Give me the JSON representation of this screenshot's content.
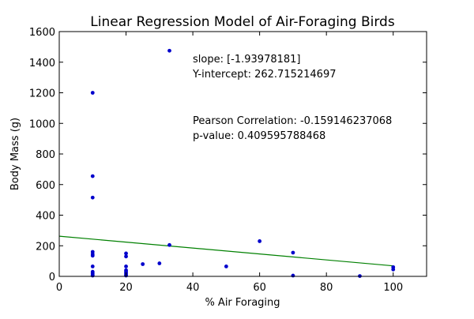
{
  "chart_data": {
    "type": "scatter",
    "title": "Linear Regression Model of Air-Foraging Birds",
    "xlabel": "% Air Foraging",
    "ylabel": "Body Mass (g)",
    "xlim": [
      0,
      110
    ],
    "ylim": [
      0,
      1600
    ],
    "xticks": [
      0,
      20,
      40,
      60,
      80,
      100
    ],
    "yticks": [
      0,
      200,
      400,
      600,
      800,
      1000,
      1200,
      1400,
      1600
    ],
    "grid": false,
    "point_color": "#0000cc",
    "line_color": "#008000",
    "points": [
      {
        "x": 10,
        "y": 1200
      },
      {
        "x": 10,
        "y": 655
      },
      {
        "x": 10,
        "y": 515
      },
      {
        "x": 10,
        "y": 160
      },
      {
        "x": 10,
        "y": 145
      },
      {
        "x": 10,
        "y": 135
      },
      {
        "x": 10,
        "y": 65
      },
      {
        "x": 10,
        "y": 30
      },
      {
        "x": 10,
        "y": 20
      },
      {
        "x": 10,
        "y": 10
      },
      {
        "x": 10,
        "y": 5
      },
      {
        "x": 20,
        "y": 150
      },
      {
        "x": 20,
        "y": 130
      },
      {
        "x": 20,
        "y": 65
      },
      {
        "x": 20,
        "y": 40
      },
      {
        "x": 20,
        "y": 30
      },
      {
        "x": 20,
        "y": 20
      },
      {
        "x": 20,
        "y": 10
      },
      {
        "x": 20,
        "y": 5
      },
      {
        "x": 25,
        "y": 80
      },
      {
        "x": 30,
        "y": 85
      },
      {
        "x": 33,
        "y": 1475
      },
      {
        "x": 33,
        "y": 205
      },
      {
        "x": 50,
        "y": 65
      },
      {
        "x": 60,
        "y": 230
      },
      {
        "x": 70,
        "y": 155
      },
      {
        "x": 70,
        "y": 5
      },
      {
        "x": 90,
        "y": 2
      },
      {
        "x": 100,
        "y": 60
      },
      {
        "x": 100,
        "y": 45
      }
    ],
    "regression": {
      "slope": -1.93978181,
      "intercept": 262.715214697,
      "x_range": [
        0,
        100
      ]
    },
    "annotations": {
      "slope": "slope: [-1.93978181]",
      "intercept": "Y-intercept: 262.715214697",
      "pearson": "Pearson Correlation: -0.159146237068",
      "pvalue": "p-value: 0.409595788468"
    }
  }
}
